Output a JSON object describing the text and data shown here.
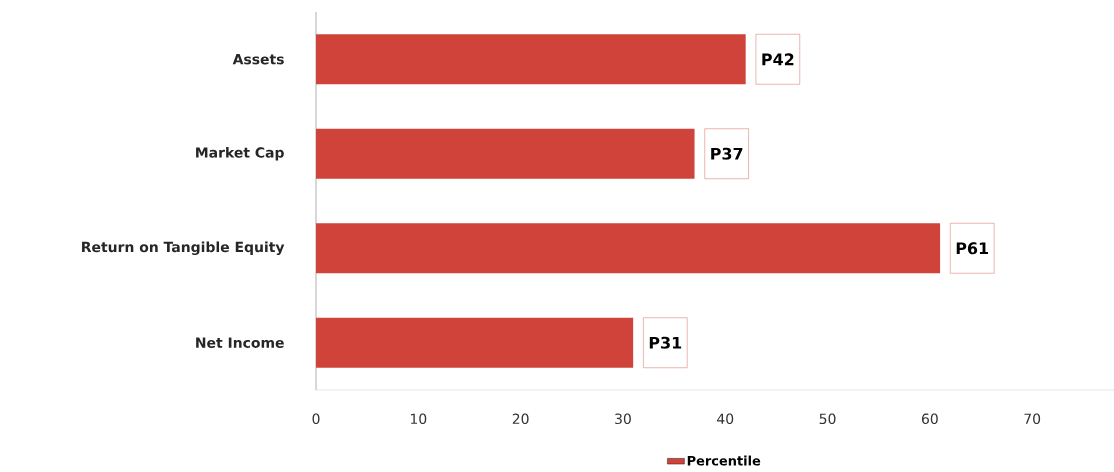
{
  "chart_data": {
    "type": "bar",
    "orientation": "horizontal",
    "categories": [
      "Assets",
      "Market Cap",
      "Return on Tangible Equity",
      "Net Income"
    ],
    "series": [
      {
        "name": "Percentile",
        "color": "#d0433b",
        "values": [
          42,
          37,
          61,
          31
        ],
        "value_labels": [
          "P42",
          "P37",
          "P61",
          "P31"
        ]
      }
    ],
    "xlim": [
      0,
      78
    ],
    "xticks": [
      0,
      10,
      20,
      30,
      40,
      50,
      60,
      70
    ],
    "grid": false,
    "legend": "bottom"
  }
}
